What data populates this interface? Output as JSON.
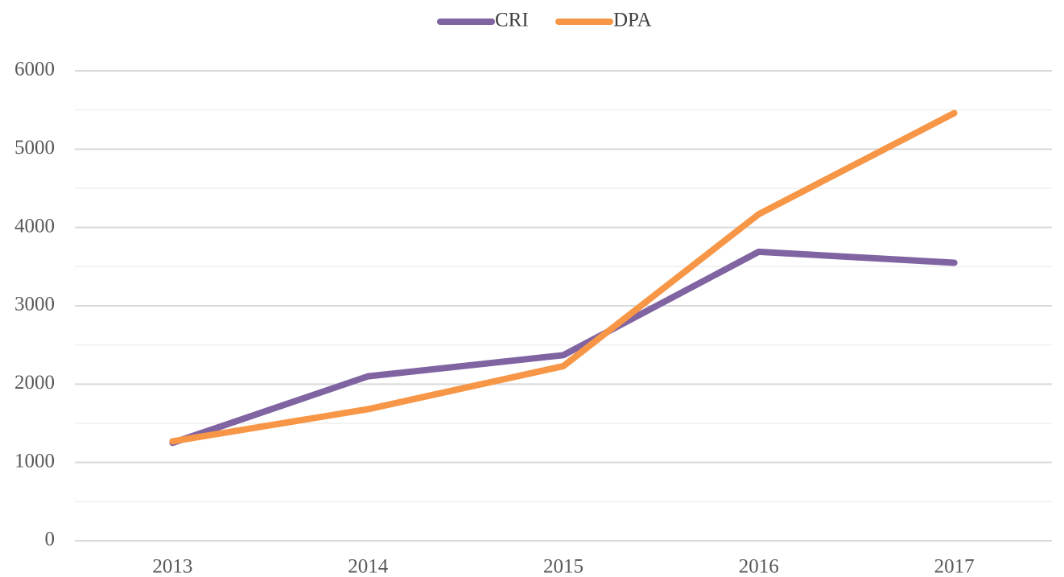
{
  "chart_data": {
    "type": "line",
    "categories": [
      "2013",
      "2014",
      "2015",
      "2016",
      "2017"
    ],
    "series": [
      {
        "name": "CRI",
        "color": "#8064a2",
        "values": [
          1250,
          2100,
          2370,
          3690,
          3550
        ]
      },
      {
        "name": "DPA",
        "color": "#f79646",
        "values": [
          1270,
          1680,
          2230,
          4170,
          5460
        ]
      }
    ],
    "ylim": [
      0,
      6000
    ],
    "yticks": [
      0,
      1000,
      2000,
      3000,
      4000,
      5000,
      6000
    ],
    "grid": true,
    "minor_grid": true,
    "legend": "top"
  }
}
